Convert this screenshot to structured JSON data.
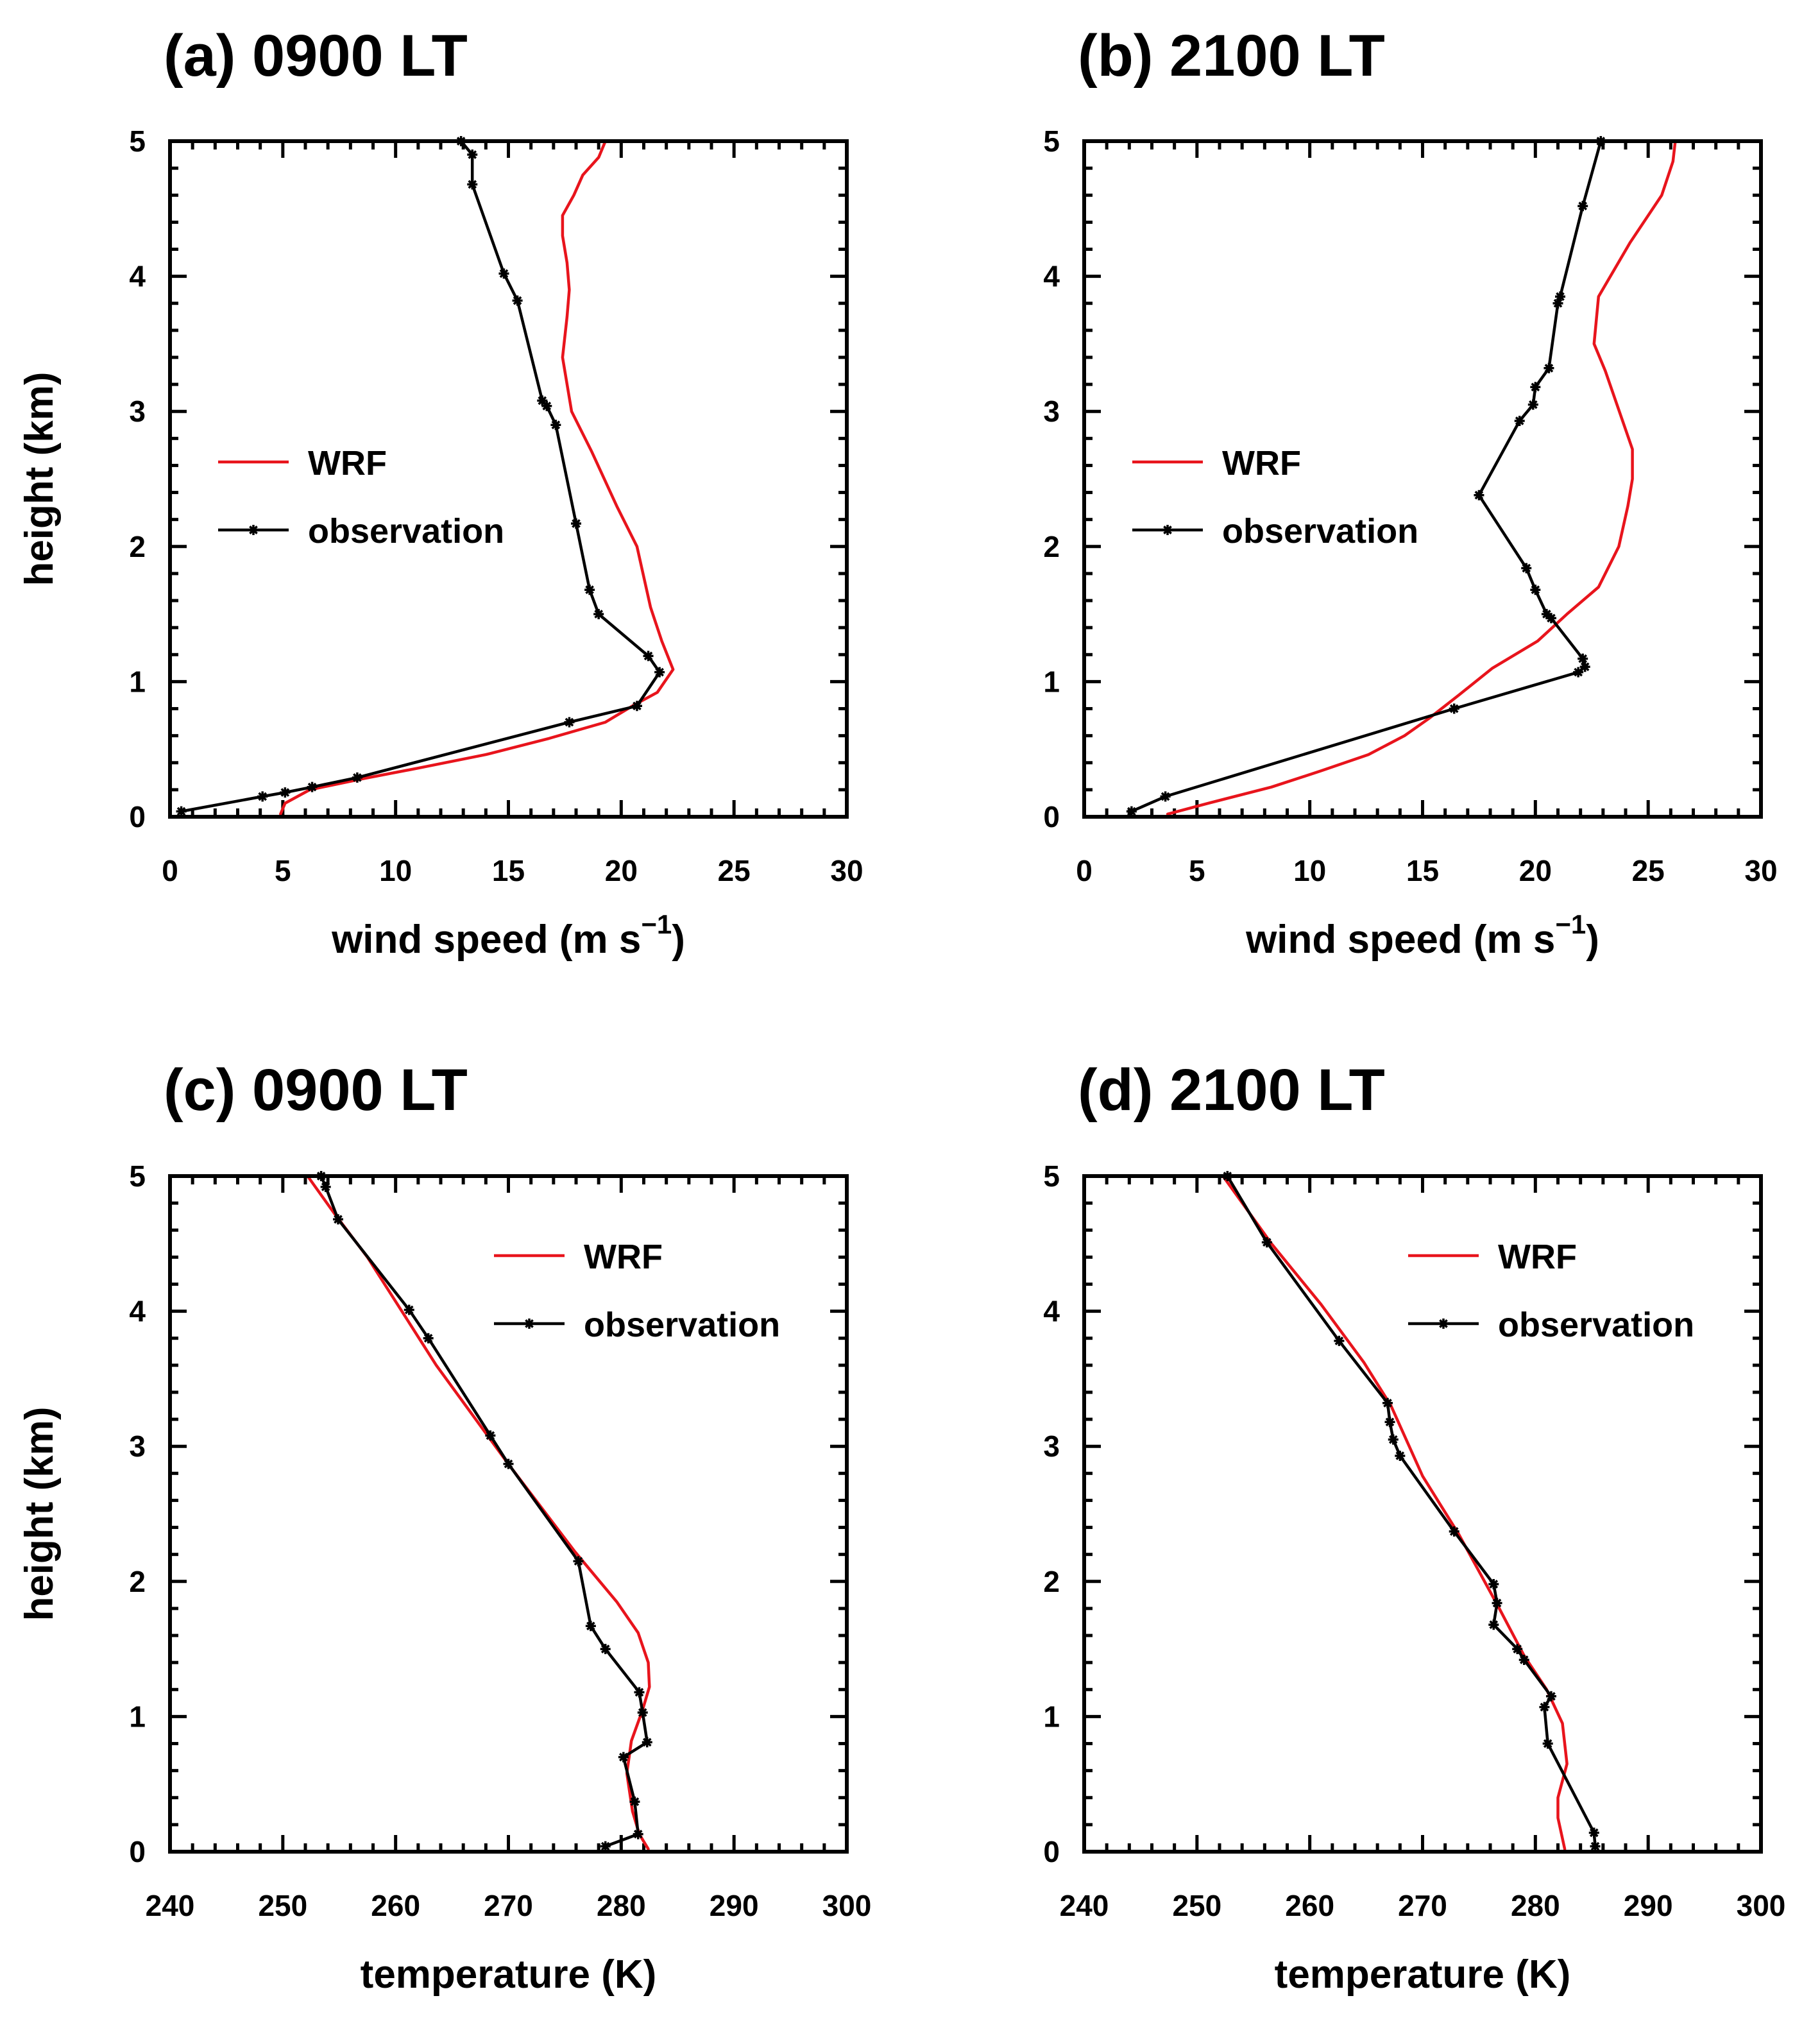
{
  "figure": {
    "colors": {
      "wrf": "#e8141c",
      "observation": "#000000",
      "frame": "#000000"
    },
    "legend": {
      "wrf_label": "WRF",
      "obs_label": "observation"
    }
  },
  "chart_data": [
    {
      "type": "line",
      "title": "(a) 0900 LT",
      "xlabel": "wind speed (m s",
      "xlabel_sup": "−1",
      "xlabel_close": ")",
      "ylabel": "height (km)",
      "xlim": [
        0,
        30
      ],
      "ylim": [
        0,
        5
      ],
      "xticks": [
        "0",
        "5",
        "10",
        "15",
        "20",
        "25",
        "30"
      ],
      "yticks": [
        "0",
        "1",
        "2",
        "3",
        "4",
        "5"
      ],
      "legend_position": "middle-left",
      "series": [
        {
          "name": "WRF",
          "color": "#e8141c",
          "markers": false,
          "x": [
            4.9,
            5.1,
            6.2,
            8.5,
            11.0,
            14.0,
            16.8,
            19.3,
            20.6,
            21.6,
            22.3,
            21.8,
            21.3,
            20.7,
            19.8,
            18.7,
            17.8,
            17.4,
            17.6,
            17.7,
            17.6,
            17.4,
            17.4,
            17.9,
            18.3,
            19.0,
            19.3
          ],
          "y": [
            0.02,
            0.1,
            0.2,
            0.28,
            0.36,
            0.46,
            0.58,
            0.7,
            0.83,
            0.92,
            1.09,
            1.3,
            1.55,
            2.0,
            2.3,
            2.7,
            3.0,
            3.4,
            3.7,
            3.9,
            4.1,
            4.3,
            4.45,
            4.6,
            4.75,
            4.88,
            5.0
          ]
        },
        {
          "name": "observation",
          "color": "#000000",
          "markers": true,
          "x": [
            0.5,
            4.1,
            5.1,
            6.3,
            8.3,
            17.7,
            20.7,
            21.7,
            21.2,
            19.0,
            18.6,
            18.0,
            17.1,
            16.7,
            16.5,
            15.4,
            14.8,
            13.4,
            13.4,
            12.9
          ],
          "y": [
            0.04,
            0.15,
            0.18,
            0.22,
            0.29,
            0.7,
            0.82,
            1.07,
            1.19,
            1.5,
            1.68,
            2.17,
            2.9,
            3.04,
            3.08,
            3.82,
            4.02,
            4.68,
            4.9,
            5.0
          ]
        }
      ]
    },
    {
      "type": "line",
      "title": "(b) 2100 LT",
      "xlabel": "wind speed (m s",
      "xlabel_sup": "−1",
      "xlabel_close": ")",
      "ylabel": "",
      "xlim": [
        0,
        30
      ],
      "ylim": [
        0,
        5
      ],
      "xticks": [
        "0",
        "5",
        "10",
        "15",
        "20",
        "25",
        "30"
      ],
      "yticks": [
        "0",
        "1",
        "2",
        "3",
        "4",
        "5"
      ],
      "legend_position": "middle-left",
      "series": [
        {
          "name": "WRF",
          "color": "#e8141c",
          "markers": false,
          "x": [
            3.7,
            5.5,
            8.3,
            10.5,
            12.6,
            14.2,
            15.3,
            16.6,
            18.1,
            20.1,
            21.4,
            22.8,
            23.7,
            24.1,
            24.3,
            24.3,
            23.1,
            22.6,
            22.8,
            24.2,
            25.6,
            26.1,
            26.2
          ],
          "y": [
            0.02,
            0.1,
            0.22,
            0.34,
            0.46,
            0.6,
            0.73,
            0.9,
            1.1,
            1.3,
            1.5,
            1.7,
            2.0,
            2.3,
            2.5,
            2.72,
            3.3,
            3.5,
            3.85,
            4.25,
            4.6,
            4.85,
            5.0
          ]
        },
        {
          "name": "observation",
          "color": "#000000",
          "markers": true,
          "x": [
            2.1,
            3.6,
            16.4,
            21.9,
            22.2,
            22.1,
            20.7,
            20.5,
            20.0,
            19.6,
            17.5,
            19.3,
            19.9,
            20.0,
            20.6,
            21.0,
            21.1,
            22.1,
            22.9
          ],
          "y": [
            0.04,
            0.15,
            0.8,
            1.07,
            1.11,
            1.17,
            1.47,
            1.5,
            1.68,
            1.84,
            2.38,
            2.93,
            3.05,
            3.18,
            3.32,
            3.8,
            3.85,
            4.52,
            5.0
          ]
        }
      ]
    },
    {
      "type": "line",
      "title": "(c) 0900 LT",
      "xlabel": "temperature (K)",
      "xlabel_sup": "",
      "xlabel_close": "",
      "ylabel": "height (km)",
      "xlim": [
        240,
        300
      ],
      "ylim": [
        0,
        5
      ],
      "xticks": [
        "240",
        "250",
        "260",
        "270",
        "280",
        "290",
        "300"
      ],
      "yticks": [
        "0",
        "1",
        "2",
        "3",
        "4",
        "5"
      ],
      "legend_position": "top-right",
      "series": [
        {
          "name": "WRF",
          "color": "#e8141c",
          "markers": false,
          "x": [
            282.4,
            281.6,
            281.0,
            280.5,
            280.9,
            281.9,
            282.5,
            282.4,
            281.5,
            279.6,
            275.9,
            269.9,
            263.6,
            257.5,
            254.6,
            252.2
          ],
          "y": [
            0.02,
            0.13,
            0.3,
            0.58,
            0.82,
            1.05,
            1.22,
            1.4,
            1.62,
            1.85,
            2.22,
            2.88,
            3.6,
            4.4,
            4.72,
            5.0
          ]
        },
        {
          "name": "observation",
          "color": "#000000",
          "markers": true,
          "x": [
            278.6,
            281.5,
            281.2,
            280.2,
            282.3,
            281.9,
            281.6,
            278.6,
            277.3,
            276.2,
            270.0,
            268.4,
            262.9,
            261.2,
            254.9,
            253.8,
            253.4
          ],
          "y": [
            0.04,
            0.13,
            0.37,
            0.7,
            0.81,
            1.03,
            1.18,
            1.5,
            1.67,
            2.15,
            2.87,
            3.08,
            3.8,
            4.01,
            4.68,
            4.92,
            5.0
          ]
        }
      ]
    },
    {
      "type": "line",
      "title": "(d) 2100 LT",
      "xlabel": "temperature (K)",
      "xlabel_sup": "",
      "xlabel_close": "",
      "ylabel": "",
      "xlim": [
        240,
        300
      ],
      "ylim": [
        0,
        5
      ],
      "xticks": [
        "240",
        "250",
        "260",
        "270",
        "280",
        "290",
        "300"
      ],
      "yticks": [
        "0",
        "1",
        "2",
        "3",
        "4",
        "5"
      ],
      "legend_position": "top-right",
      "series": [
        {
          "name": "WRF",
          "color": "#e8141c",
          "markers": false,
          "x": [
            282.6,
            282.0,
            282.0,
            282.8,
            282.4,
            281.0,
            279.0,
            276.8,
            273.2,
            270.0,
            267.2,
            264.8,
            261.0,
            256.6,
            252.3
          ],
          "y": [
            0.02,
            0.25,
            0.4,
            0.65,
            0.95,
            1.2,
            1.45,
            1.8,
            2.35,
            2.78,
            3.3,
            3.62,
            4.05,
            4.5,
            5.0
          ]
        },
        {
          "name": "observation",
          "color": "#000000",
          "markers": true,
          "x": [
            285.3,
            285.2,
            281.1,
            280.8,
            281.4,
            279.0,
            278.4,
            276.3,
            276.6,
            276.3,
            272.8,
            268.0,
            267.4,
            267.1,
            266.9,
            262.6,
            256.2,
            252.7
          ],
          "y": [
            0.04,
            0.14,
            0.8,
            1.07,
            1.15,
            1.42,
            1.5,
            1.68,
            1.84,
            1.98,
            2.37,
            2.93,
            3.05,
            3.18,
            3.32,
            3.78,
            4.51,
            5.0
          ]
        }
      ]
    }
  ]
}
